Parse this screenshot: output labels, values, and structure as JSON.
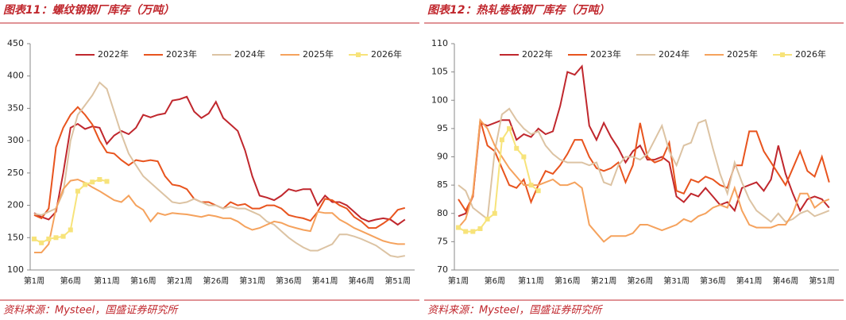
{
  "chart_data": [
    {
      "type": "line",
      "title": "图表11：螺纹钢钢厂库存（万吨）",
      "source": "资料来源：Mysteel，国盛证券研究所",
      "categories": [
        "第1周",
        null,
        null,
        null,
        null,
        "第6周",
        null,
        null,
        null,
        null,
        "第11周",
        null,
        null,
        null,
        null,
        "第16周",
        null,
        null,
        null,
        null,
        "第21周",
        null,
        null,
        null,
        null,
        "第26周",
        null,
        null,
        null,
        null,
        "第31周",
        null,
        null,
        null,
        null,
        "第36周",
        null,
        null,
        null,
        null,
        "第41周",
        null,
        null,
        null,
        null,
        "第46周",
        null,
        null,
        null,
        null,
        "第51周",
        null
      ],
      "ylim": [
        100,
        450
      ],
      "yticks": [
        100,
        150,
        200,
        250,
        300,
        350,
        400,
        450
      ],
      "legend": "top",
      "series": [
        {
          "name": "2022年",
          "color": "#c0272d",
          "values": [
            188,
            182,
            178,
            190,
            250,
            320,
            326,
            318,
            322,
            320,
            295,
            308,
            315,
            310,
            320,
            340,
            336,
            340,
            342,
            362,
            364,
            368,
            345,
            335,
            342,
            360,
            335,
            325,
            315,
            285,
            245,
            215,
            212,
            208,
            215,
            225,
            222,
            225,
            225,
            200,
            215,
            205,
            205,
            200,
            190,
            180,
            175,
            178,
            180,
            178,
            170,
            178
          ]
        },
        {
          "name": "2023年",
          "color": "#e8541e",
          "values": [
            185,
            180,
            195,
            290,
            320,
            340,
            352,
            340,
            325,
            300,
            282,
            280,
            270,
            262,
            270,
            268,
            270,
            268,
            245,
            232,
            230,
            225,
            210,
            205,
            205,
            200,
            195,
            205,
            200,
            202,
            195,
            195,
            200,
            200,
            195,
            185,
            182,
            180,
            176,
            190,
            210,
            208,
            200,
            195,
            182,
            175,
            165,
            165,
            172,
            180,
            193,
            196
          ]
        },
        {
          "name": "2024年",
          "color": "#dcc3a3",
          "values": [
            187,
            185,
            190,
            195,
            220,
            300,
            340,
            355,
            370,
            390,
            380,
            345,
            310,
            280,
            262,
            245,
            235,
            225,
            215,
            205,
            203,
            205,
            210,
            205,
            200,
            200,
            195,
            198,
            195,
            195,
            190,
            185,
            175,
            170,
            160,
            150,
            142,
            135,
            130,
            130,
            135,
            140,
            155,
            155,
            152,
            148,
            143,
            138,
            130,
            122,
            120,
            122
          ]
        },
        {
          "name": "2025年",
          "color": "#f5a25d",
          "values": [
            127,
            127,
            140,
            195,
            225,
            238,
            240,
            235,
            228,
            222,
            215,
            208,
            205,
            215,
            200,
            193,
            175,
            188,
            185,
            188,
            187,
            186,
            184,
            182,
            185,
            183,
            180,
            180,
            175,
            167,
            162,
            165,
            170,
            175,
            173,
            168,
            165,
            162,
            160,
            190,
            188,
            188,
            178,
            172,
            165,
            160,
            155,
            150,
            145,
            142,
            140,
            140
          ]
        },
        {
          "name": "2026年",
          "color": "#f7e37a",
          "marker": "square",
          "values": [
            148,
            142,
            148,
            150,
            152,
            162,
            222,
            232,
            236,
            240,
            237,
            null,
            null,
            null,
            null,
            null,
            null,
            null,
            null,
            null,
            null,
            null,
            null,
            null,
            null,
            null,
            null,
            null,
            null,
            null,
            null,
            null,
            null,
            null,
            null,
            null,
            null,
            null,
            null,
            null,
            null,
            null,
            null,
            null,
            null,
            null,
            null,
            null,
            null,
            null,
            null,
            null
          ]
        }
      ]
    },
    {
      "type": "line",
      "title": "图表12：热轧卷板钢厂库存（万吨）",
      "source": "资料来源：Mysteel，国盛证券研究所",
      "categories": [
        "第1周",
        null,
        null,
        null,
        null,
        "第6周",
        null,
        null,
        null,
        null,
        "第11周",
        null,
        null,
        null,
        null,
        "第16周",
        null,
        null,
        null,
        null,
        "第21周",
        null,
        null,
        null,
        null,
        "第26周",
        null,
        null,
        null,
        null,
        "第31周",
        null,
        null,
        null,
        null,
        "第36周",
        null,
        null,
        null,
        null,
        "第41周",
        null,
        null,
        null,
        null,
        "第46周",
        null,
        null,
        null,
        null,
        "第51周",
        null
      ],
      "ylim": [
        70,
        110
      ],
      "yticks": [
        70,
        75,
        80,
        85,
        90,
        95,
        100,
        105,
        110
      ],
      "legend": "top",
      "series": [
        {
          "name": "2022年",
          "color": "#c0272d",
          "values": [
            79.5,
            80,
            83,
            96,
            95.5,
            96,
            96.5,
            96.5,
            93,
            94,
            93.5,
            95,
            94,
            94.5,
            99,
            105,
            104.5,
            106,
            95.5,
            93,
            96,
            93.5,
            91.5,
            89,
            91,
            92,
            89.5,
            89.5,
            90,
            89,
            83,
            82,
            83.5,
            83,
            84.5,
            83,
            81.5,
            82,
            80.5,
            84.5,
            85,
            85.5,
            84,
            86,
            92,
            87,
            83.5,
            80.5,
            82.5,
            83,
            82.5,
            81
          ]
        },
        {
          "name": "2023年",
          "color": "#e8541e",
          "values": [
            82.5,
            80.5,
            83,
            96.5,
            92,
            91,
            88,
            85,
            84.5,
            86,
            82,
            85,
            87.5,
            87,
            88.5,
            90.5,
            93,
            93,
            90,
            88,
            87.5,
            88,
            89,
            85.5,
            88.5,
            96,
            90,
            89,
            89.5,
            92.5,
            84,
            83.5,
            86,
            85.5,
            86.5,
            86,
            85,
            84.5,
            88.5,
            88.5,
            94.5,
            94.5,
            91,
            89,
            87,
            85,
            88,
            91,
            87.5,
            86.5,
            90,
            85.5
          ]
        },
        {
          "name": "2024年",
          "color": "#dcc3a3",
          "values": [
            85,
            84,
            81,
            80,
            79,
            91,
            97.5,
            98.5,
            96.5,
            95,
            94,
            94.5,
            92,
            90.5,
            89.5,
            89,
            89,
            89,
            88.5,
            89,
            85.5,
            85,
            88.5,
            90,
            90,
            89.5,
            90.5,
            93,
            95.5,
            91,
            88.5,
            92,
            92.5,
            96,
            96.5,
            91.5,
            87,
            83.5,
            89,
            85.5,
            82.5,
            80.5,
            79.5,
            78.5,
            80,
            78.5,
            79,
            80,
            80.5,
            79.5,
            80,
            80.5
          ]
        },
        {
          "name": "2025年",
          "color": "#f5a25d",
          "values": [
            77.5,
            79,
            83.5,
            96.5,
            95,
            92,
            90,
            88,
            86.5,
            85,
            85,
            85,
            85.5,
            86,
            85,
            85,
            85.5,
            84.5,
            78,
            76.5,
            75,
            76,
            76,
            76,
            76.5,
            78,
            78,
            77.5,
            77,
            77.5,
            78,
            79,
            78.5,
            79.5,
            80,
            81,
            81.5,
            81,
            84.5,
            80.5,
            78,
            77.5,
            77.5,
            77.5,
            78,
            78,
            80,
            83.5,
            83.5,
            81,
            82,
            82.5
          ]
        },
        {
          "name": "2026年",
          "color": "#f7e37a",
          "marker": "square",
          "values": [
            77.5,
            76.8,
            76.8,
            77.3,
            79,
            80,
            93,
            95,
            91.5,
            90,
            85,
            84,
            null,
            null,
            null,
            null,
            null,
            null,
            null,
            null,
            null,
            null,
            null,
            null,
            null,
            null,
            null,
            null,
            null,
            null,
            null,
            null,
            null,
            null,
            null,
            null,
            null,
            null,
            null,
            null,
            null,
            null,
            null,
            null,
            null,
            null,
            null,
            null,
            null,
            null,
            null,
            null
          ]
        }
      ]
    }
  ]
}
